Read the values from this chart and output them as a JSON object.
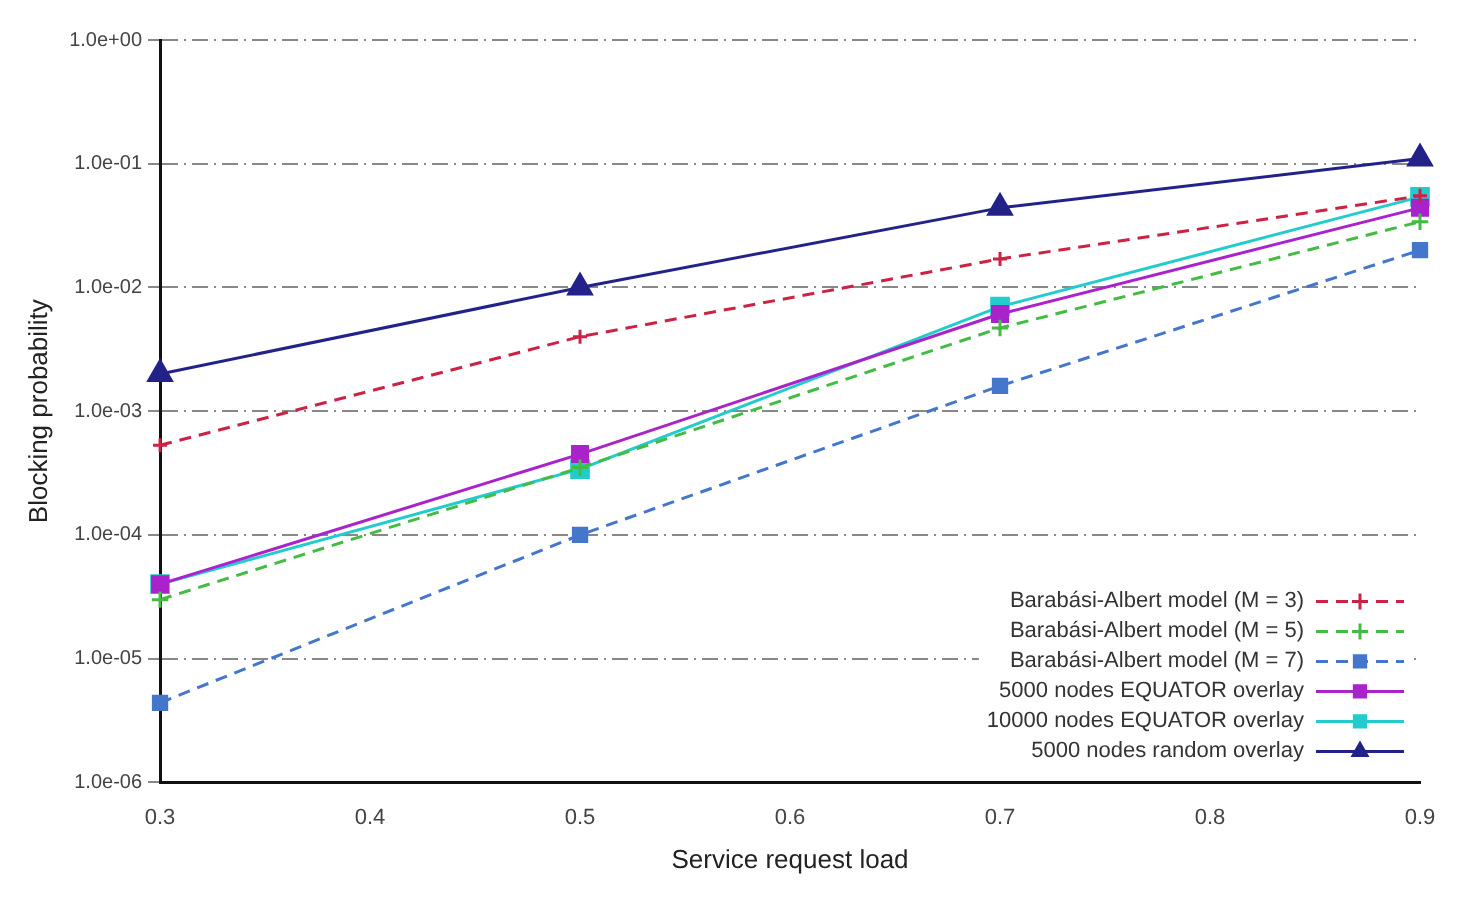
{
  "chart_data": {
    "type": "line",
    "xlabel": "Service request load",
    "ylabel": "Blocking probability",
    "x": [
      0.3,
      0.5,
      0.7,
      0.9
    ],
    "xlim": [
      0.3,
      0.9
    ],
    "xticks": [
      0.3,
      0.4,
      0.5,
      0.6,
      0.7,
      0.8,
      0.9
    ],
    "ylim": [
      1e-06,
      1
    ],
    "log": "y",
    "yticks": [
      {
        "value": 1e-06,
        "label": "1.0e-06"
      },
      {
        "value": 1e-05,
        "label": "1.0e-05"
      },
      {
        "value": 0.0001,
        "label": "1.0e-04"
      },
      {
        "value": 0.001,
        "label": "1.0e-03"
      },
      {
        "value": 0.01,
        "label": "1.0e-02"
      },
      {
        "value": 0.1,
        "label": "1.0e-01"
      },
      {
        "value": 1,
        "label": "1.0e+00"
      }
    ],
    "grid": "y",
    "legend": "bottom right",
    "series": [
      {
        "name": "Barabási-Albert model (M = 3)",
        "color": "#cc2244",
        "marker": "cross",
        "line_style": "dashed",
        "values": [
          0.00053,
          0.004,
          0.017,
          0.055
        ]
      },
      {
        "name": "Barabási-Albert model (M = 5)",
        "color": "#44bb44",
        "marker": "cross",
        "line_style": "dashed",
        "values": [
          3e-05,
          0.00035,
          0.0047,
          0.034
        ]
      },
      {
        "name": "Barabási-Albert model (M = 7)",
        "color": "#4477cc",
        "marker": "square",
        "line_style": "dashed",
        "values": [
          4.4e-06,
          0.0001,
          0.0016,
          0.02
        ]
      },
      {
        "name": "5000 nodes EQUATOR overlay",
        "color": "#aa22cc",
        "marker": "square",
        "line_style": "solid",
        "values": [
          4e-05,
          0.00045,
          0.0061,
          0.044
        ]
      },
      {
        "name": "10000 nodes EQUATOR overlay",
        "color": "#22cccc",
        "marker": "square",
        "line_style": "solid",
        "values": [
          4e-05,
          0.00034,
          0.007,
          0.054
        ]
      },
      {
        "name": "5000 nodes random overlay",
        "color": "#222288",
        "marker": "triangle",
        "line_style": "solid",
        "values": [
          0.002,
          0.01,
          0.044,
          0.11
        ]
      }
    ]
  }
}
